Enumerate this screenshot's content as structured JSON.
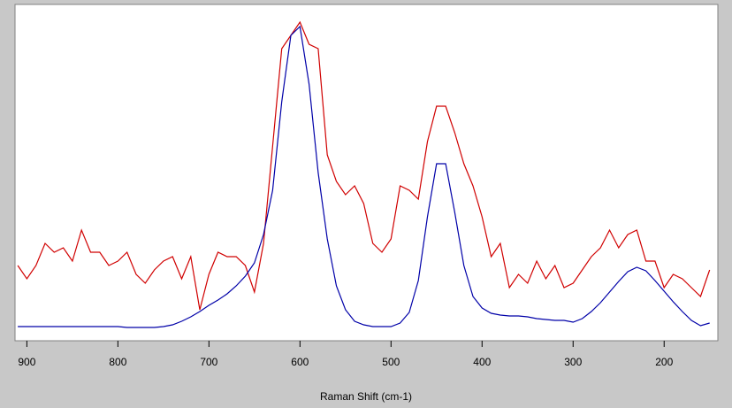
{
  "chart_data": {
    "type": "line",
    "x_label": "Raman Shift (cm-1)",
    "x": [
      910,
      900,
      890,
      880,
      870,
      860,
      850,
      840,
      830,
      820,
      810,
      800,
      790,
      780,
      770,
      760,
      750,
      740,
      730,
      720,
      710,
      700,
      690,
      680,
      670,
      660,
      650,
      640,
      630,
      620,
      610,
      600,
      590,
      580,
      570,
      560,
      550,
      540,
      530,
      520,
      510,
      500,
      490,
      480,
      470,
      460,
      450,
      440,
      430,
      420,
      410,
      400,
      390,
      380,
      370,
      360,
      350,
      340,
      330,
      320,
      310,
      300,
      290,
      280,
      270,
      260,
      250,
      240,
      230,
      220,
      210,
      200,
      190,
      180,
      170,
      160,
      150
    ],
    "series": [
      {
        "color": "#d00000",
        "values": [
          85,
          70,
          85,
          110,
          100,
          105,
          90,
          125,
          100,
          100,
          85,
          90,
          100,
          75,
          65,
          80,
          90,
          95,
          70,
          95,
          35,
          75,
          100,
          95,
          95,
          85,
          55,
          110,
          220,
          330,
          345,
          360,
          335,
          330,
          210,
          180,
          165,
          175,
          155,
          110,
          100,
          115,
          175,
          170,
          160,
          225,
          265,
          265,
          235,
          200,
          175,
          140,
          95,
          110,
          60,
          75,
          65,
          90,
          70,
          85,
          60,
          65,
          80,
          95,
          105,
          125,
          105,
          120,
          125,
          90,
          90,
          60,
          75,
          70,
          60,
          50,
          80
        ]
      },
      {
        "color": "#0000a8",
        "values": [
          16,
          16,
          16,
          16,
          16,
          16,
          16,
          16,
          16,
          16,
          16,
          16,
          15,
          15,
          15,
          15,
          16,
          18,
          22,
          27,
          33,
          40,
          46,
          53,
          62,
          73,
          88,
          120,
          170,
          270,
          345,
          355,
          290,
          190,
          115,
          62,
          35,
          22,
          18,
          16,
          16,
          16,
          20,
          32,
          68,
          140,
          200,
          200,
          145,
          85,
          50,
          37,
          31,
          29,
          28,
          28,
          27,
          25,
          24,
          23,
          23,
          21,
          25,
          33,
          43,
          55,
          67,
          78,
          83,
          79,
          68,
          56,
          44,
          33,
          23,
          17,
          20
        ]
      }
    ],
    "xlim": [
      913,
      141
    ],
    "ylim": [
      0,
      380
    ],
    "xticks": [
      900,
      800,
      700,
      600,
      500,
      400,
      300,
      200
    ]
  }
}
